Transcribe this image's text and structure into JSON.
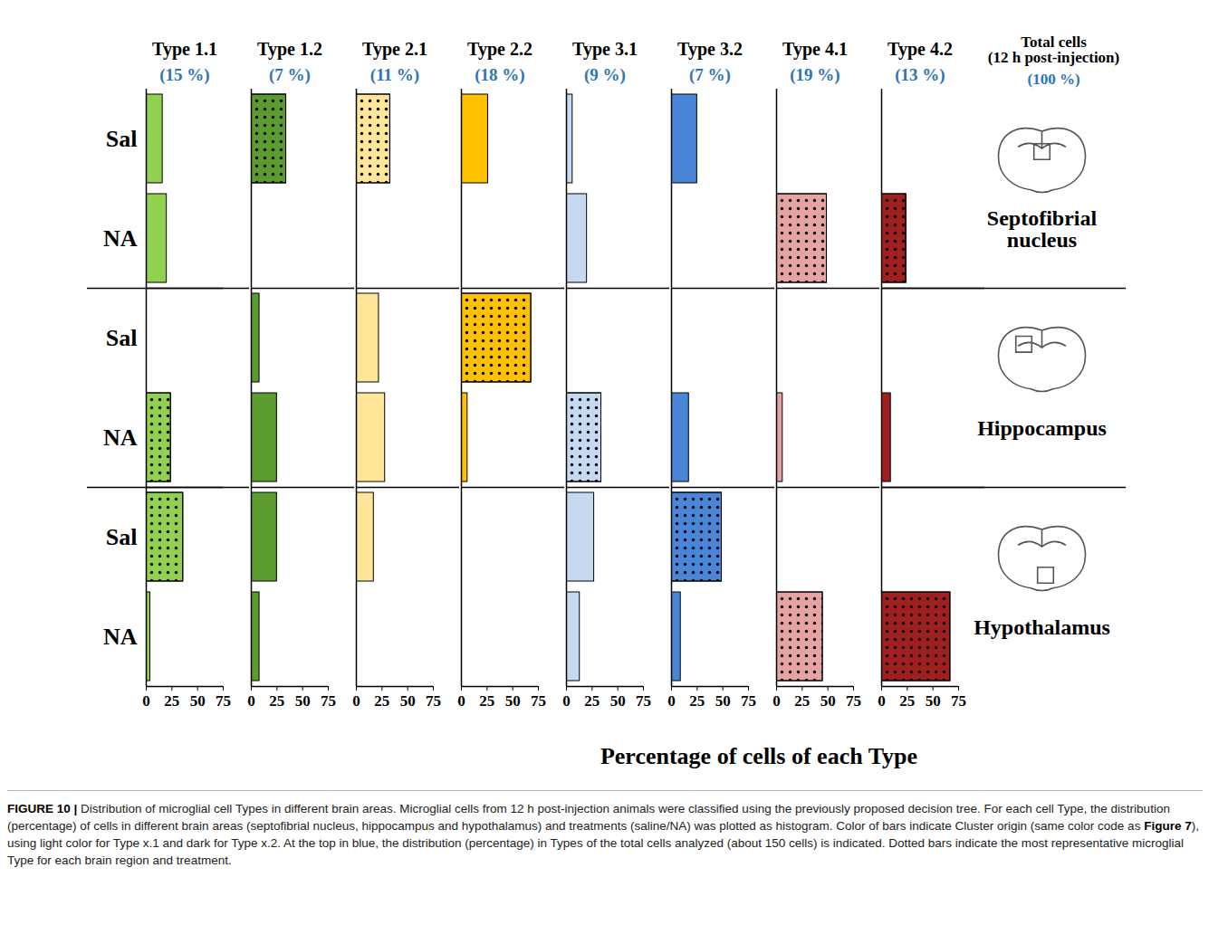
{
  "chart_data": {
    "type": "bar",
    "orientation": "horizontal",
    "xlabel": "Percentage of cells of each Type",
    "xlim": [
      0,
      75
    ],
    "xticks": [
      0,
      25,
      50,
      75
    ],
    "categories": [
      "Sal",
      "NA",
      "Sal",
      "NA",
      "Sal",
      "NA"
    ],
    "groups": [
      "Septofibrial nucleus",
      "Septofibrial nucleus",
      "Hippocampus",
      "Hippocampus",
      "Hypothalamus",
      "Hypothalamus"
    ],
    "series": [
      {
        "name": "Type 1.1",
        "share": "(15 %)",
        "color": "#92d050",
        "values": [
          16,
          20,
          0,
          24,
          36,
          4
        ],
        "most_representative": [
          false,
          false,
          false,
          true,
          true,
          false
        ]
      },
      {
        "name": "Type 1.2",
        "share": "(7 %)",
        "color": "#5b9b2f",
        "values": [
          34,
          0,
          8,
          25,
          25,
          8
        ],
        "most_representative": [
          true,
          false,
          false,
          false,
          false,
          false
        ]
      },
      {
        "name": "Type 2.1",
        "share": "(11 %)",
        "color": "#ffe699",
        "values": [
          33,
          0,
          22,
          28,
          17,
          0
        ],
        "most_representative": [
          true,
          false,
          false,
          false,
          false,
          false
        ]
      },
      {
        "name": "Type 2.2",
        "share": "(18 %)",
        "color": "#ffc000",
        "values": [
          26,
          0,
          68,
          6,
          0,
          0
        ],
        "most_representative": [
          false,
          false,
          true,
          false,
          false,
          false
        ]
      },
      {
        "name": "Type 3.1",
        "share": "(9 %)",
        "color": "#c5d9f1",
        "values": [
          6,
          20,
          0,
          34,
          27,
          13
        ],
        "most_representative": [
          false,
          false,
          false,
          true,
          false,
          false
        ]
      },
      {
        "name": "Type 3.2",
        "share": "(7 %)",
        "color": "#4a86d8",
        "values": [
          25,
          0,
          0,
          17,
          49,
          9
        ],
        "most_representative": [
          false,
          false,
          false,
          false,
          true,
          false
        ]
      },
      {
        "name": "Type 4.1",
        "share": "(19 %)",
        "color": "#e6a3a3",
        "values": [
          0,
          49,
          0,
          6,
          0,
          45
        ],
        "most_representative": [
          false,
          true,
          false,
          false,
          false,
          true
        ]
      },
      {
        "name": "Type 4.2",
        "share": "(13 %)",
        "color": "#a02020",
        "values": [
          0,
          24,
          0,
          9,
          0,
          67
        ],
        "most_representative": [
          false,
          true,
          false,
          false,
          false,
          true
        ]
      }
    ],
    "total": {
      "lines": [
        "Total cells",
        "(12 h post-injection)"
      ],
      "share": "(100 %)"
    }
  },
  "caption": {
    "label": "FIGURE 10 |",
    "segments": [
      {
        "text": "Distribution of microglial cell Types in different brain areas. Microglial cells from 12 h post-injection animals were classified using the previously proposed decision tree. For each cell Type, the distribution (percentage) of cells in different brain areas (septofibrial nucleus, hippocampus and hypothalamus) and treatments (saline/NA) was plotted as histogram. Color of bars indicate Cluster origin (same color code as ",
        "bold": false
      },
      {
        "text": "Figure 7",
        "bold": true
      },
      {
        "text": "), using light color for Type x.1 and dark for Type x.2. At the top in blue, the distribution (percentage) in Types of the total cells analyzed (about 150 cells) is indicated. Dotted bars indicate the most representative microglial Type for each brain region and treatment.",
        "bold": false
      }
    ]
  }
}
